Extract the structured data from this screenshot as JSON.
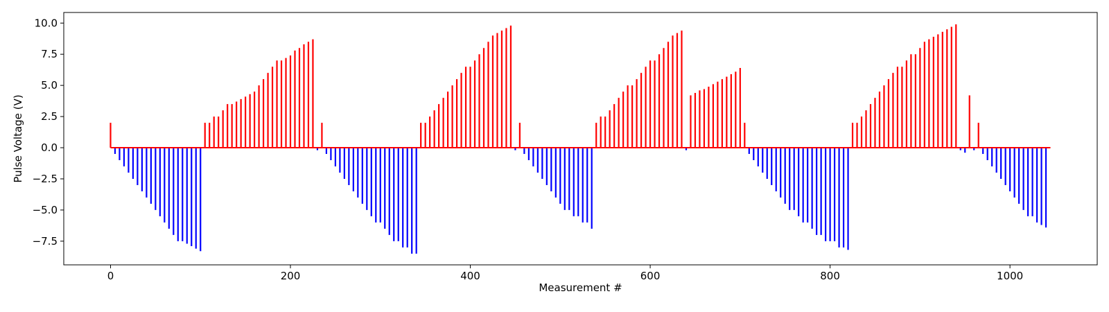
{
  "chart_data": {
    "type": "bar",
    "title": "",
    "xlabel": "Measurement #",
    "ylabel": "Pulse Voltage (V)",
    "xlim": [
      -52,
      1097
    ],
    "ylim": [
      -9.4,
      10.85
    ],
    "xticks": [
      0,
      200,
      400,
      600,
      800,
      1000
    ],
    "xtick_labels": [
      "0",
      "200",
      "400",
      "600",
      "800",
      "1000"
    ],
    "yticks": [
      -7.5,
      -5.0,
      -2.5,
      0.0,
      2.5,
      5.0,
      7.5,
      10.0
    ],
    "ytick_labels": [
      "−7.5",
      "−5.0",
      "−2.5",
      "0.0",
      "2.5",
      "5.0",
      "7.5",
      "10.0"
    ],
    "grid": false,
    "baseline_x_range": [
      0,
      1045
    ],
    "colors": {
      "positive": "#ff0000",
      "negative": "#0000ff",
      "baseline": "#ff0000"
    },
    "series": [
      {
        "name": "",
        "color": "#ff0000",
        "points": [
          [
            0,
            2.0
          ],
          [
            105,
            2.0
          ],
          [
            110,
            2.0
          ],
          [
            115,
            2.5
          ],
          [
            120,
            2.5
          ],
          [
            125,
            3.0
          ],
          [
            130,
            3.5
          ],
          [
            135,
            3.5
          ],
          [
            140,
            3.7
          ],
          [
            145,
            3.9
          ],
          [
            150,
            4.1
          ],
          [
            155,
            4.3
          ],
          [
            160,
            4.5
          ],
          [
            165,
            5.0
          ],
          [
            170,
            5.5
          ],
          [
            175,
            6.0
          ],
          [
            180,
            6.5
          ],
          [
            185,
            7.0
          ],
          [
            190,
            7.0
          ],
          [
            195,
            7.2
          ],
          [
            200,
            7.4
          ],
          [
            205,
            7.8
          ],
          [
            210,
            8.0
          ],
          [
            215,
            8.3
          ],
          [
            220,
            8.5
          ],
          [
            225,
            8.7
          ],
          [
            235,
            2.0
          ],
          [
            345,
            2.0
          ],
          [
            350,
            2.0
          ],
          [
            355,
            2.5
          ],
          [
            360,
            3.0
          ],
          [
            365,
            3.5
          ],
          [
            370,
            4.0
          ],
          [
            375,
            4.5
          ],
          [
            380,
            5.0
          ],
          [
            385,
            5.5
          ],
          [
            390,
            6.0
          ],
          [
            395,
            6.5
          ],
          [
            400,
            6.5
          ],
          [
            405,
            7.0
          ],
          [
            410,
            7.5
          ],
          [
            415,
            8.0
          ],
          [
            420,
            8.5
          ],
          [
            425,
            9.0
          ],
          [
            430,
            9.2
          ],
          [
            435,
            9.4
          ],
          [
            440,
            9.6
          ],
          [
            445,
            9.8
          ],
          [
            455,
            2.0
          ],
          [
            540,
            2.0
          ],
          [
            545,
            2.5
          ],
          [
            550,
            2.5
          ],
          [
            555,
            3.0
          ],
          [
            560,
            3.5
          ],
          [
            565,
            4.0
          ],
          [
            570,
            4.5
          ],
          [
            575,
            5.0
          ],
          [
            580,
            5.0
          ],
          [
            585,
            5.5
          ],
          [
            590,
            6.0
          ],
          [
            595,
            6.5
          ],
          [
            600,
            7.0
          ],
          [
            605,
            7.0
          ],
          [
            610,
            7.5
          ],
          [
            615,
            8.0
          ],
          [
            620,
            8.5
          ],
          [
            625,
            9.0
          ],
          [
            630,
            9.2
          ],
          [
            635,
            9.4
          ],
          [
            645,
            4.2
          ],
          [
            650,
            4.4
          ],
          [
            655,
            4.6
          ],
          [
            660,
            4.7
          ],
          [
            665,
            4.9
          ],
          [
            670,
            5.1
          ],
          [
            675,
            5.3
          ],
          [
            680,
            5.5
          ],
          [
            685,
            5.7
          ],
          [
            690,
            5.9
          ],
          [
            695,
            6.1
          ],
          [
            700,
            6.4
          ],
          [
            705,
            2.0
          ],
          [
            825,
            2.0
          ],
          [
            830,
            2.0
          ],
          [
            835,
            2.5
          ],
          [
            840,
            3.0
          ],
          [
            845,
            3.5
          ],
          [
            850,
            4.0
          ],
          [
            855,
            4.5
          ],
          [
            860,
            5.0
          ],
          [
            865,
            5.5
          ],
          [
            870,
            6.0
          ],
          [
            875,
            6.5
          ],
          [
            880,
            6.5
          ],
          [
            885,
            7.0
          ],
          [
            890,
            7.5
          ],
          [
            895,
            7.5
          ],
          [
            900,
            8.0
          ],
          [
            905,
            8.5
          ],
          [
            910,
            8.7
          ],
          [
            915,
            8.9
          ],
          [
            920,
            9.1
          ],
          [
            925,
            9.3
          ],
          [
            930,
            9.5
          ],
          [
            935,
            9.7
          ],
          [
            940,
            9.9
          ],
          [
            955,
            4.2
          ],
          [
            965,
            2.0
          ]
        ]
      },
      {
        "name": "",
        "color": "#0000ff",
        "points": [
          [
            5,
            -0.5
          ],
          [
            10,
            -1.0
          ],
          [
            15,
            -1.5
          ],
          [
            20,
            -2.0
          ],
          [
            25,
            -2.5
          ],
          [
            30,
            -3.0
          ],
          [
            35,
            -3.5
          ],
          [
            40,
            -4.0
          ],
          [
            45,
            -4.5
          ],
          [
            50,
            -5.0
          ],
          [
            55,
            -5.5
          ],
          [
            60,
            -6.0
          ],
          [
            65,
            -6.5
          ],
          [
            70,
            -7.0
          ],
          [
            75,
            -7.5
          ],
          [
            80,
            -7.5
          ],
          [
            85,
            -7.7
          ],
          [
            90,
            -7.9
          ],
          [
            95,
            -8.1
          ],
          [
            100,
            -8.3
          ],
          [
            230,
            -0.2
          ],
          [
            240,
            -0.5
          ],
          [
            245,
            -1.0
          ],
          [
            250,
            -1.5
          ],
          [
            255,
            -2.0
          ],
          [
            260,
            -2.5
          ],
          [
            265,
            -3.0
          ],
          [
            270,
            -3.5
          ],
          [
            275,
            -4.0
          ],
          [
            280,
            -4.5
          ],
          [
            285,
            -5.0
          ],
          [
            290,
            -5.5
          ],
          [
            295,
            -6.0
          ],
          [
            300,
            -6.0
          ],
          [
            305,
            -6.5
          ],
          [
            310,
            -7.0
          ],
          [
            315,
            -7.5
          ],
          [
            320,
            -7.5
          ],
          [
            325,
            -8.0
          ],
          [
            330,
            -8.0
          ],
          [
            335,
            -8.5
          ],
          [
            340,
            -8.5
          ],
          [
            450,
            -0.2
          ],
          [
            460,
            -0.5
          ],
          [
            465,
            -1.0
          ],
          [
            470,
            -1.5
          ],
          [
            475,
            -2.0
          ],
          [
            480,
            -2.5
          ],
          [
            485,
            -3.0
          ],
          [
            490,
            -3.5
          ],
          [
            495,
            -4.0
          ],
          [
            500,
            -4.5
          ],
          [
            505,
            -5.0
          ],
          [
            510,
            -5.0
          ],
          [
            515,
            -5.5
          ],
          [
            520,
            -5.5
          ],
          [
            525,
            -6.0
          ],
          [
            530,
            -6.0
          ],
          [
            535,
            -6.5
          ],
          [
            640,
            -0.2
          ],
          [
            710,
            -0.5
          ],
          [
            715,
            -1.0
          ],
          [
            720,
            -1.5
          ],
          [
            725,
            -2.0
          ],
          [
            730,
            -2.5
          ],
          [
            735,
            -3.0
          ],
          [
            740,
            -3.5
          ],
          [
            745,
            -4.0
          ],
          [
            750,
            -4.5
          ],
          [
            755,
            -5.0
          ],
          [
            760,
            -5.0
          ],
          [
            765,
            -5.5
          ],
          [
            770,
            -6.0
          ],
          [
            775,
            -6.0
          ],
          [
            780,
            -6.5
          ],
          [
            785,
            -7.0
          ],
          [
            790,
            -7.0
          ],
          [
            795,
            -7.5
          ],
          [
            800,
            -7.5
          ],
          [
            805,
            -7.5
          ],
          [
            810,
            -8.0
          ],
          [
            815,
            -8.0
          ],
          [
            820,
            -8.2
          ],
          [
            945,
            -0.2
          ],
          [
            950,
            -0.4
          ],
          [
            960,
            -0.2
          ],
          [
            970,
            -0.5
          ],
          [
            975,
            -1.0
          ],
          [
            980,
            -1.5
          ],
          [
            985,
            -2.0
          ],
          [
            990,
            -2.5
          ],
          [
            995,
            -3.0
          ],
          [
            1000,
            -3.5
          ],
          [
            1005,
            -4.0
          ],
          [
            1010,
            -4.5
          ],
          [
            1015,
            -5.0
          ],
          [
            1020,
            -5.5
          ],
          [
            1025,
            -5.5
          ],
          [
            1030,
            -6.0
          ],
          [
            1035,
            -6.2
          ],
          [
            1040,
            -6.4
          ]
        ]
      }
    ]
  }
}
